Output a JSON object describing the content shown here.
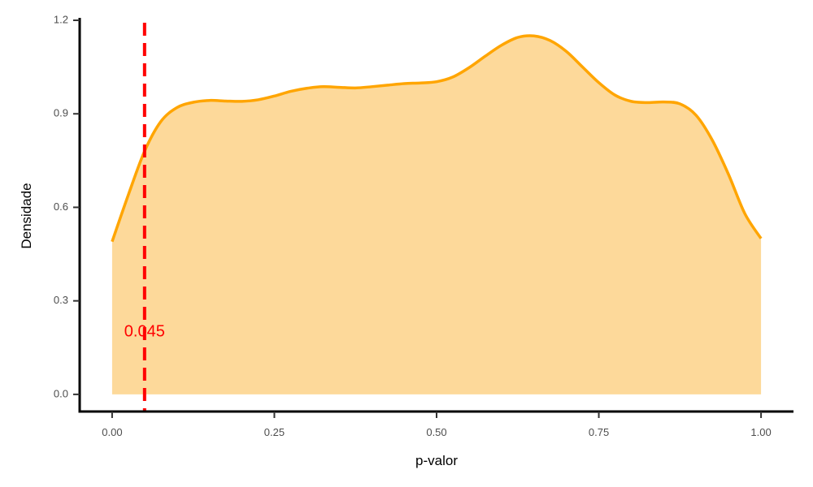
{
  "chart_data": {
    "type": "area",
    "title": "",
    "xlabel": "p-valor",
    "ylabel": "Densidade",
    "xlim": [
      -0.05,
      1.05
    ],
    "ylim": [
      -0.055,
      1.2
    ],
    "grid": false,
    "x_ticks": [
      0.0,
      0.25,
      0.5,
      0.75,
      1.0
    ],
    "x_tick_labels": [
      "0.00",
      "0.25",
      "0.50",
      "0.75",
      "1.00"
    ],
    "y_ticks": [
      0.0,
      0.3,
      0.6,
      0.9,
      1.2
    ],
    "y_tick_labels": [
      "0.0",
      "0.3",
      "0.6",
      "0.9",
      "1.2"
    ],
    "series": [
      {
        "x": [
          0.0,
          0.025,
          0.05,
          0.075,
          0.1,
          0.125,
          0.15,
          0.175,
          0.2,
          0.225,
          0.25,
          0.275,
          0.3,
          0.325,
          0.35,
          0.375,
          0.4,
          0.425,
          0.45,
          0.475,
          0.5,
          0.525,
          0.55,
          0.575,
          0.6,
          0.625,
          0.65,
          0.675,
          0.7,
          0.725,
          0.75,
          0.775,
          0.8,
          0.825,
          0.85,
          0.875,
          0.9,
          0.925,
          0.95,
          0.975,
          1.0
        ],
        "y": [
          0.49,
          0.64,
          0.78,
          0.875,
          0.92,
          0.937,
          0.943,
          0.941,
          0.94,
          0.945,
          0.957,
          0.972,
          0.982,
          0.987,
          0.985,
          0.983,
          0.987,
          0.992,
          0.997,
          0.999,
          1.003,
          1.018,
          1.048,
          1.085,
          1.12,
          1.145,
          1.15,
          1.135,
          1.1,
          1.05,
          1.0,
          0.96,
          0.94,
          0.936,
          0.938,
          0.932,
          0.895,
          0.815,
          0.705,
          0.58,
          0.5
        ]
      }
    ],
    "colors": {
      "fill": "#fdd99a",
      "line": "#ffa500",
      "reference": "#ff0000"
    },
    "reference_line": {
      "x": 0.05,
      "style": "dashed",
      "label": "0.045"
    }
  }
}
